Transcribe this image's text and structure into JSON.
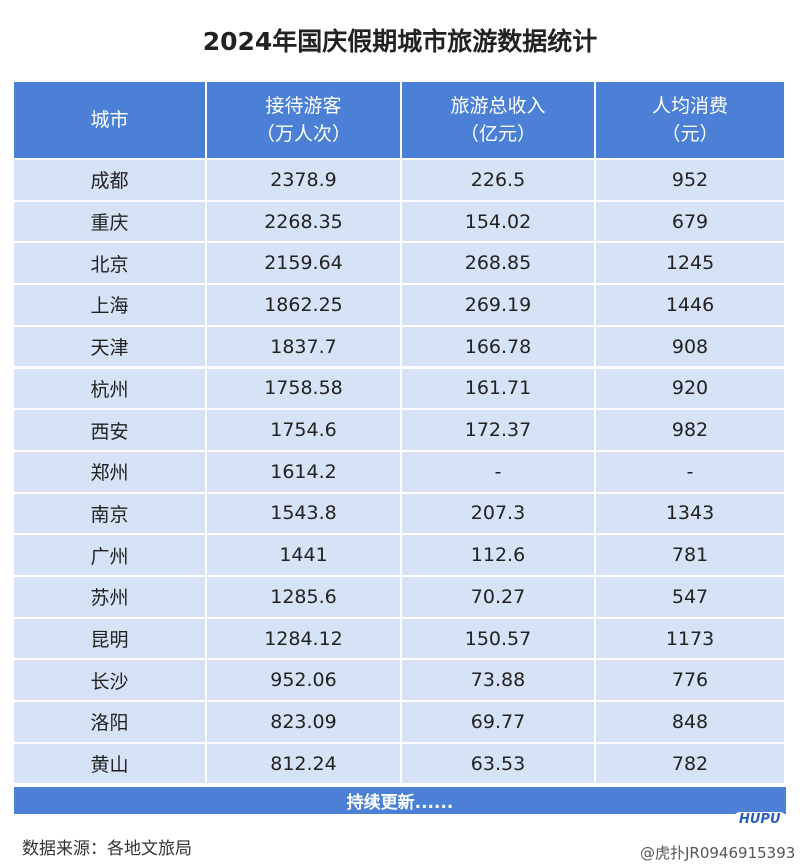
{
  "title": "2024年国庆假期城市旅游数据统计",
  "table": {
    "header": [
      [
        "城市"
      ],
      [
        "接待游客",
        "（万人次）"
      ],
      [
        "旅游总收入",
        "（亿元）"
      ],
      [
        "人均消费",
        "（元）"
      ]
    ],
    "rows": [
      [
        "成都",
        "2378.9",
        "226.5",
        "952"
      ],
      [
        "重庆",
        "2268.35",
        "154.02",
        "679"
      ],
      [
        "北京",
        "2159.64",
        "268.85",
        "1245"
      ],
      [
        "上海",
        "1862.25",
        "269.19",
        "1446"
      ],
      [
        "天津",
        "1837.7",
        "166.78",
        "908"
      ],
      [
        "杭州",
        "1758.58",
        "161.71",
        "920"
      ],
      [
        "西安",
        "1754.6",
        "172.37",
        "982"
      ],
      [
        "郑州",
        "1614.2",
        "-",
        "-"
      ],
      [
        "南京",
        "1543.8",
        "207.3",
        "1343"
      ],
      [
        "广州",
        "1441",
        "112.6",
        "781"
      ],
      [
        "苏州",
        "1285.6",
        "70.27",
        "547"
      ],
      [
        "昆明",
        "1284.12",
        "150.57",
        "1173"
      ],
      [
        "长沙",
        "952.06",
        "73.88",
        "776"
      ],
      [
        "洛阳",
        "823.09",
        "69.77",
        "848"
      ],
      [
        "黄山",
        "812.24",
        "63.53",
        "782"
      ]
    ],
    "footer": "持续更新......"
  },
  "source": "数据来源：各地文旅局",
  "watermark": {
    "logo": "HUPU",
    "text": "@虎扑JR0946915393"
  }
}
